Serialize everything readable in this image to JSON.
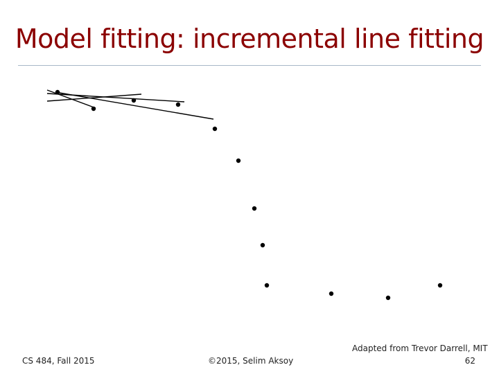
{
  "slide": {
    "title": "Model fitting: incremental line fitting"
  },
  "footer": {
    "course": "CS 484, Fall 2015",
    "copyright": "©2015, Selim Aksoy",
    "credit": "Adapted from Trevor Darrell, MIT",
    "page": "62"
  },
  "colors": {
    "title": "#8b0000",
    "rule": "#a8b8c8",
    "ink": "#000000"
  }
}
